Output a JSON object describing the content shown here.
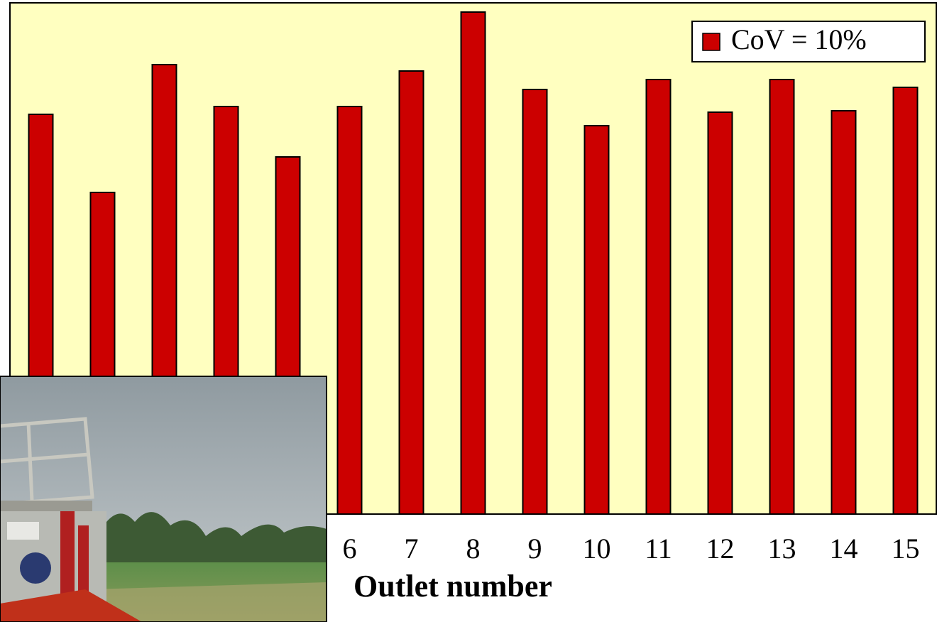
{
  "chart_data": {
    "type": "bar",
    "x_label": "Outlet number",
    "categories": [
      null,
      null,
      null,
      null,
      null,
      "6",
      "7",
      "8",
      "9",
      "10",
      "11",
      "12",
      "13",
      "14",
      "15"
    ],
    "series": [
      {
        "name": "CoV = 10%",
        "color": "#cc0000",
        "values": [
          563,
          453,
          633,
          574,
          503,
          574,
          624,
          707,
          598,
          547,
          612,
          566,
          612,
          568,
          601
        ]
      }
    ],
    "ylim": [
      0,
      720
    ],
    "legend": "top-right"
  }
}
